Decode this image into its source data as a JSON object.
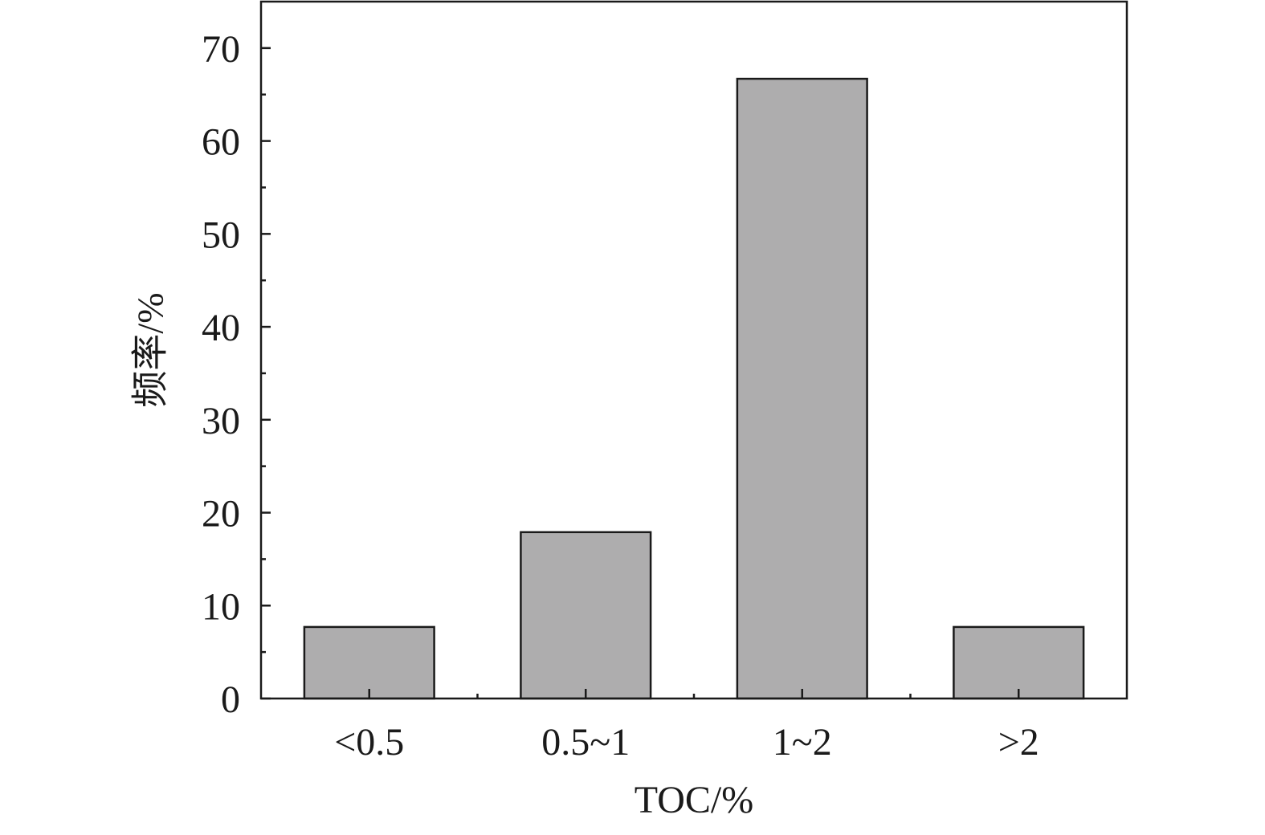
{
  "chart_data": {
    "type": "bar",
    "title": "",
    "xlabel": "TOC/%",
    "ylabel": "频率/%",
    "categories": [
      "<0.5",
      "0.5~1",
      "1~2",
      ">2"
    ],
    "values": [
      7.7,
      17.9,
      66.7,
      7.7
    ],
    "ylim": [
      0,
      75
    ],
    "yticks": [
      0,
      10,
      20,
      30,
      40,
      50,
      60,
      70
    ],
    "ytick_labels": [
      "0",
      "10",
      "20",
      "30",
      "40",
      "50",
      "60",
      "70"
    ],
    "minor_ytick_step": 5,
    "grid": false,
    "legend": "none",
    "bar_color": "#aeadae",
    "bar_edge_color": "#1a1a1a",
    "axis_color": "#1a1a1a"
  }
}
